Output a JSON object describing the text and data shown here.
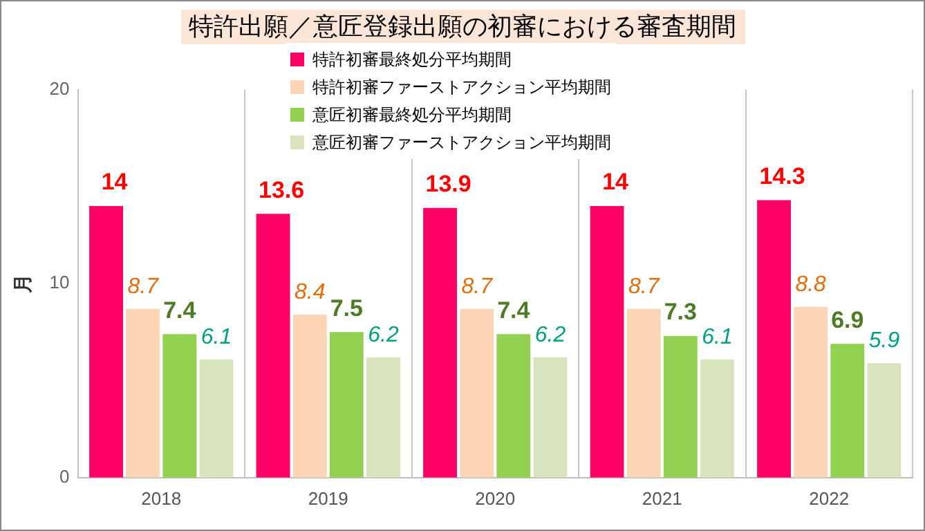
{
  "chart_data": {
    "type": "bar",
    "title": "特許出願／意匠登録出願の初審における審査期間",
    "ylabel": "月",
    "categories": [
      "2018",
      "2019",
      "2020",
      "2021",
      "2022"
    ],
    "series": [
      {
        "name": "特許初審最終処分平均期間",
        "color": "#ff0066",
        "values": [
          14,
          13.6,
          13.9,
          14,
          14.3
        ]
      },
      {
        "name": "特許初審ファーストアクション平均期間",
        "color": "#fbd5b5",
        "values": [
          8.7,
          8.4,
          8.7,
          8.7,
          8.8
        ]
      },
      {
        "name": "意匠初審最終処分平均期間",
        "color": "#92d050",
        "values": [
          7.4,
          7.5,
          7.4,
          7.3,
          6.9
        ]
      },
      {
        "name": "意匠初審ファーストアクション平均期間",
        "color": "#d7e4bd",
        "values": [
          6.1,
          6.2,
          6.2,
          6.1,
          5.9
        ]
      }
    ],
    "ylim": [
      0,
      20
    ],
    "yticks": [
      0,
      10,
      20
    ],
    "grid": "x",
    "legend": "top",
    "data_labels": true
  }
}
